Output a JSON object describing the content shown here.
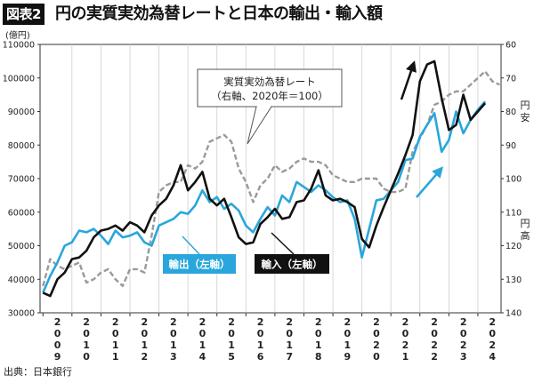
{
  "header": {
    "figure_label": "図表2",
    "title": "円の実質実効為替レートと日本の輸出・輸入額"
  },
  "source": "出典：日本銀行",
  "chart_data": {
    "type": "line",
    "title": "円の実質実効為替レートと日本の輸出・輸入額",
    "ylabel_left": "(億円)",
    "ylim_left": [
      30000,
      110000
    ],
    "yticks_left": [
      30000,
      40000,
      50000,
      60000,
      70000,
      80000,
      90000,
      100000,
      110000
    ],
    "ylim_right_inverted": [
      60,
      140
    ],
    "yticks_right": [
      60,
      70,
      80,
      90,
      100,
      110,
      120,
      130,
      140
    ],
    "right_axis_top_label": "円安",
    "right_axis_bottom_label": "円高",
    "x_tick_labels": [
      "2009",
      "2010",
      "2011",
      "2012",
      "2013",
      "2014",
      "2015",
      "2016",
      "2017",
      "2018",
      "2019",
      "2020",
      "2021",
      "2022",
      "2023",
      "2024"
    ],
    "grid": "vertical",
    "series": [
      {
        "name": "実質実効為替レート（右軸、2020年＝100）",
        "axis": "right",
        "style": "dashed",
        "color": "#9a9a9a",
        "points": [
          [
            2009.0,
            132
          ],
          [
            2009.25,
            124
          ],
          [
            2009.5,
            126
          ],
          [
            2009.75,
            127
          ],
          [
            2010.0,
            126
          ],
          [
            2010.25,
            125
          ],
          [
            2010.5,
            131
          ],
          [
            2010.75,
            130
          ],
          [
            2011.0,
            128
          ],
          [
            2011.25,
            127
          ],
          [
            2011.5,
            130
          ],
          [
            2011.75,
            132
          ],
          [
            2012.0,
            127
          ],
          [
            2012.25,
            127
          ],
          [
            2012.5,
            128
          ],
          [
            2012.75,
            117
          ],
          [
            2013.0,
            104
          ],
          [
            2013.25,
            102
          ],
          [
            2013.5,
            101
          ],
          [
            2013.75,
            101
          ],
          [
            2014.0,
            96
          ],
          [
            2014.25,
            97
          ],
          [
            2014.5,
            95
          ],
          [
            2014.75,
            89
          ],
          [
            2015.0,
            88
          ],
          [
            2015.25,
            87
          ],
          [
            2015.5,
            89
          ],
          [
            2015.75,
            97
          ],
          [
            2016.0,
            101
          ],
          [
            2016.25,
            107
          ],
          [
            2016.5,
            102
          ],
          [
            2016.75,
            100
          ],
          [
            2017.0,
            96
          ],
          [
            2017.25,
            98
          ],
          [
            2017.5,
            97
          ],
          [
            2017.75,
            95
          ],
          [
            2018.0,
            94
          ],
          [
            2018.25,
            95
          ],
          [
            2018.5,
            95
          ],
          [
            2018.75,
            96
          ],
          [
            2019.0,
            99
          ],
          [
            2019.25,
            100
          ],
          [
            2019.5,
            101
          ],
          [
            2019.75,
            101
          ],
          [
            2020.0,
            100
          ],
          [
            2020.25,
            100
          ],
          [
            2020.5,
            100
          ],
          [
            2020.75,
            103
          ],
          [
            2021.0,
            104
          ],
          [
            2021.25,
            104
          ],
          [
            2021.5,
            103
          ],
          [
            2021.75,
            92
          ],
          [
            2022.0,
            88
          ],
          [
            2022.25,
            84
          ],
          [
            2022.5,
            78
          ],
          [
            2022.75,
            77
          ],
          [
            2023.0,
            75
          ],
          [
            2023.25,
            74
          ],
          [
            2023.5,
            74
          ],
          [
            2023.75,
            72
          ],
          [
            2024.0,
            70
          ],
          [
            2024.25,
            68
          ],
          [
            2024.5,
            71
          ],
          [
            2024.75,
            72
          ]
        ]
      },
      {
        "name": "輸出（左軸）",
        "axis": "left",
        "style": "solid",
        "color": "#29a6dc",
        "points": [
          [
            2009.0,
            36000
          ],
          [
            2009.25,
            41000
          ],
          [
            2009.5,
            45000
          ],
          [
            2009.75,
            50000
          ],
          [
            2010.0,
            51000
          ],
          [
            2010.25,
            54500
          ],
          [
            2010.5,
            54000
          ],
          [
            2010.75,
            55000
          ],
          [
            2011.0,
            53000
          ],
          [
            2011.25,
            50500
          ],
          [
            2011.5,
            54500
          ],
          [
            2011.75,
            52500
          ],
          [
            2012.0,
            53000
          ],
          [
            2012.25,
            54000
          ],
          [
            2012.5,
            51000
          ],
          [
            2012.75,
            50000
          ],
          [
            2013.0,
            56000
          ],
          [
            2013.25,
            57000
          ],
          [
            2013.5,
            58000
          ],
          [
            2013.75,
            60000
          ],
          [
            2014.0,
            59500
          ],
          [
            2014.25,
            62000
          ],
          [
            2014.5,
            66500
          ],
          [
            2014.75,
            63000
          ],
          [
            2015.0,
            64500
          ],
          [
            2015.25,
            61000
          ],
          [
            2015.5,
            62500
          ],
          [
            2015.75,
            60500
          ],
          [
            2016.0,
            56000
          ],
          [
            2016.25,
            54000
          ],
          [
            2016.5,
            58000
          ],
          [
            2016.75,
            61500
          ],
          [
            2017.0,
            59000
          ],
          [
            2017.25,
            65000
          ],
          [
            2017.5,
            63000
          ],
          [
            2017.75,
            69000
          ],
          [
            2018.0,
            67500
          ],
          [
            2018.25,
            66000
          ],
          [
            2018.5,
            68000
          ],
          [
            2018.75,
            66500
          ],
          [
            2019.0,
            64500
          ],
          [
            2019.25,
            63000
          ],
          [
            2019.5,
            63500
          ],
          [
            2019.75,
            58000
          ],
          [
            2020.0,
            46500
          ],
          [
            2020.25,
            55000
          ],
          [
            2020.5,
            63500
          ],
          [
            2020.75,
            64000
          ],
          [
            2021.0,
            66500
          ],
          [
            2021.25,
            69000
          ],
          [
            2021.5,
            75500
          ],
          [
            2021.75,
            76000
          ],
          [
            2022.0,
            82500
          ],
          [
            2022.25,
            86000
          ],
          [
            2022.5,
            89500
          ],
          [
            2022.75,
            78000
          ],
          [
            2023.0,
            81500
          ],
          [
            2023.25,
            90000
          ],
          [
            2023.5,
            83500
          ],
          [
            2023.75,
            87500
          ],
          [
            2024.0,
            90500
          ],
          [
            2024.25,
            93000
          ]
        ]
      },
      {
        "name": "輸入（左軸）",
        "axis": "left",
        "style": "solid",
        "color": "#111111",
        "points": [
          [
            2009.0,
            36000
          ],
          [
            2009.25,
            35000
          ],
          [
            2009.5,
            40000
          ],
          [
            2009.75,
            42000
          ],
          [
            2010.0,
            46000
          ],
          [
            2010.25,
            46500
          ],
          [
            2010.5,
            48500
          ],
          [
            2010.75,
            52500
          ],
          [
            2011.0,
            54500
          ],
          [
            2011.25,
            55000
          ],
          [
            2011.5,
            56000
          ],
          [
            2011.75,
            54500
          ],
          [
            2012.0,
            57000
          ],
          [
            2012.25,
            56000
          ],
          [
            2012.5,
            54000
          ],
          [
            2012.75,
            59000
          ],
          [
            2013.0,
            62000
          ],
          [
            2013.25,
            64000
          ],
          [
            2013.5,
            68000
          ],
          [
            2013.75,
            74000
          ],
          [
            2014.0,
            66500
          ],
          [
            2014.25,
            69000
          ],
          [
            2014.5,
            72000
          ],
          [
            2014.75,
            64000
          ],
          [
            2015.0,
            62000
          ],
          [
            2015.25,
            64000
          ],
          [
            2015.5,
            58500
          ],
          [
            2015.75,
            52500
          ],
          [
            2016.0,
            50500
          ],
          [
            2016.25,
            51000
          ],
          [
            2016.5,
            56500
          ],
          [
            2016.75,
            58500
          ],
          [
            2017.0,
            61000
          ],
          [
            2017.25,
            58000
          ],
          [
            2017.5,
            58500
          ],
          [
            2017.75,
            63000
          ],
          [
            2018.0,
            63500
          ],
          [
            2018.25,
            67000
          ],
          [
            2018.5,
            72500
          ],
          [
            2018.75,
            65000
          ],
          [
            2019.0,
            63500
          ],
          [
            2019.25,
            64000
          ],
          [
            2019.5,
            63000
          ],
          [
            2019.75,
            61500
          ],
          [
            2020.0,
            52000
          ],
          [
            2020.25,
            49500
          ],
          [
            2020.5,
            56000
          ],
          [
            2020.75,
            61500
          ],
          [
            2021.0,
            66500
          ],
          [
            2021.25,
            71500
          ],
          [
            2021.5,
            77000
          ],
          [
            2021.75,
            83000
          ],
          [
            2022.0,
            99000
          ],
          [
            2022.25,
            104000
          ],
          [
            2022.5,
            105000
          ],
          [
            2022.75,
            94000
          ],
          [
            2023.0,
            84500
          ],
          [
            2023.25,
            86000
          ],
          [
            2023.5,
            95000
          ],
          [
            2023.75,
            87500
          ],
          [
            2024.0,
            90000
          ],
          [
            2024.25,
            92500
          ]
        ]
      }
    ],
    "annotations": {
      "callout": "実質実効為替レート\n（右軸、2020年＝100）",
      "export_label": "輸出（左軸）",
      "import_label": "輸入（左軸）",
      "export_arrow_color": "#29a6dc",
      "import_arrow_color": "#111111"
    }
  }
}
